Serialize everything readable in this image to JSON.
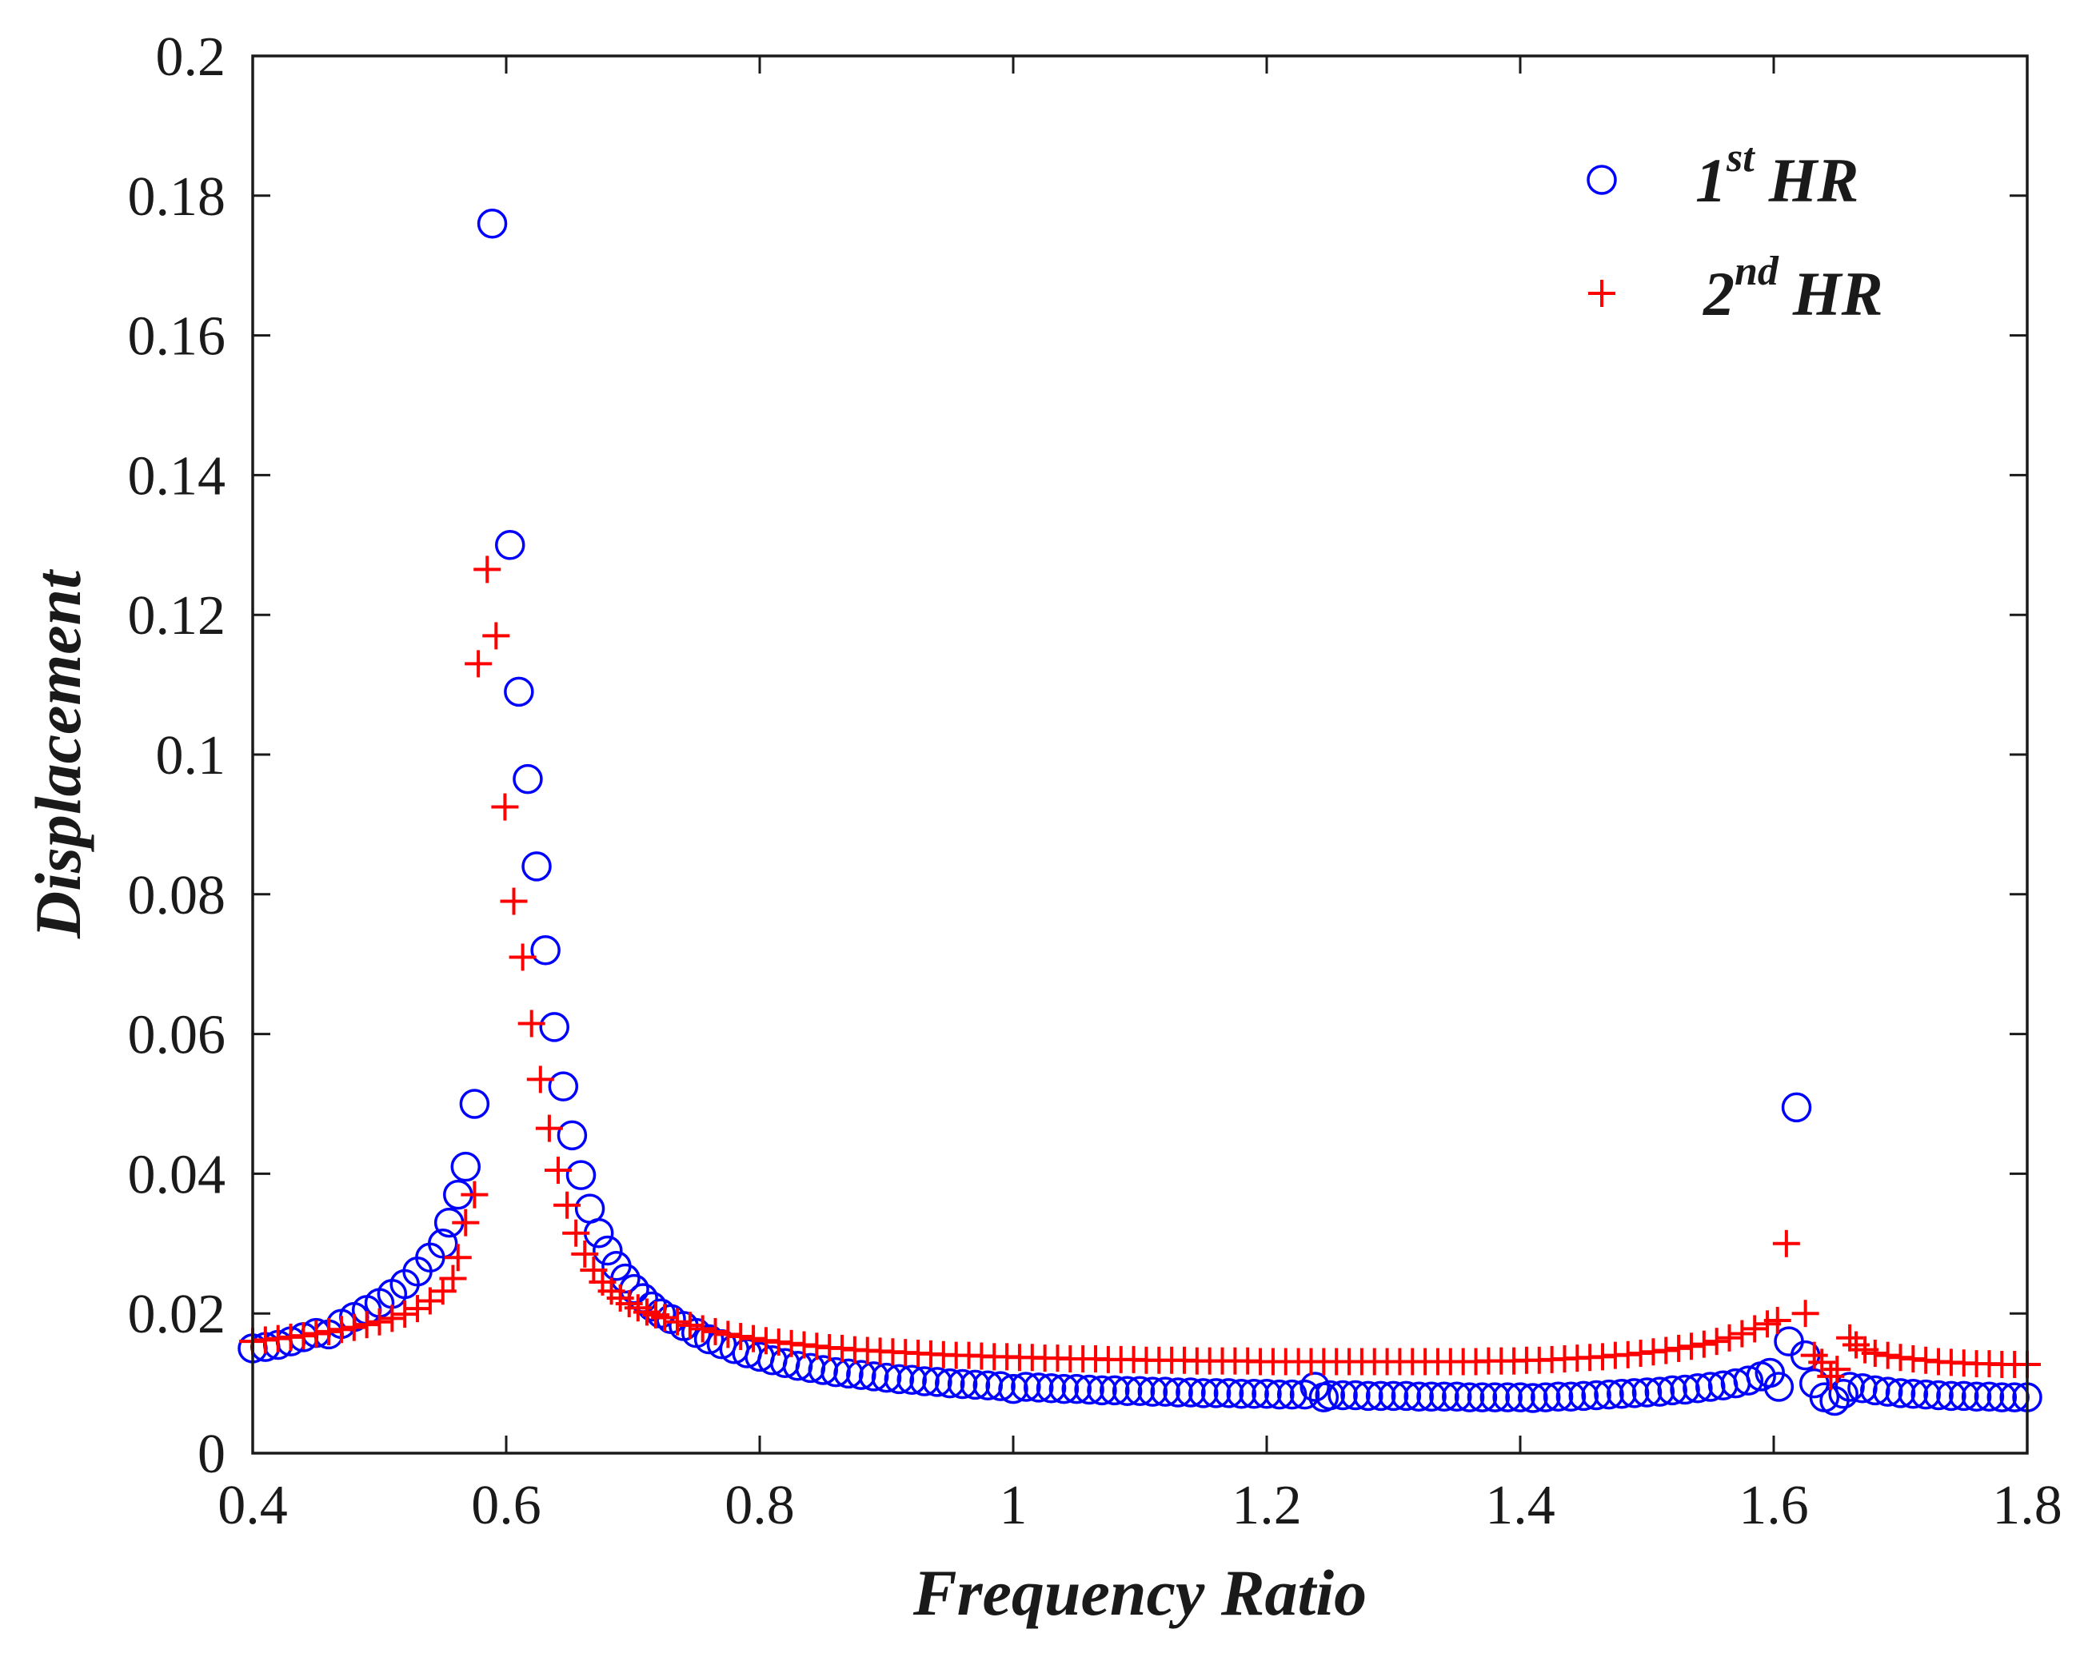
{
  "chart_data": {
    "type": "scatter",
    "title": "",
    "xlabel": "Frequency Ratio",
    "ylabel": "Displacement",
    "xlim": [
      0.4,
      1.8
    ],
    "ylim": [
      0,
      0.2
    ],
    "xticks": [
      "0.4",
      "0.6",
      "0.8",
      "1",
      "1.2",
      "1.4",
      "1.6",
      "1.8"
    ],
    "yticks": [
      "0",
      "0.02",
      "0.04",
      "0.06",
      "0.08",
      "0.1",
      "0.12",
      "0.14",
      "0.16",
      "0.18",
      "0.2"
    ],
    "grid": false,
    "legend_position": "top-right",
    "series": [
      {
        "name": "1st HR",
        "label_base": "1",
        "label_sup": "st",
        "label_rest": "HR",
        "marker": "circle",
        "color": "#0000ff",
        "points": [
          [
            0.4,
            0.015
          ],
          [
            0.41,
            0.0152
          ],
          [
            0.42,
            0.0155
          ],
          [
            0.43,
            0.016
          ],
          [
            0.44,
            0.0166
          ],
          [
            0.45,
            0.0172
          ],
          [
            0.46,
            0.017
          ],
          [
            0.47,
            0.0185
          ],
          [
            0.48,
            0.0195
          ],
          [
            0.49,
            0.0205
          ],
          [
            0.5,
            0.0215
          ],
          [
            0.51,
            0.0228
          ],
          [
            0.52,
            0.0242
          ],
          [
            0.53,
            0.026
          ],
          [
            0.54,
            0.028
          ],
          [
            0.55,
            0.03
          ],
          [
            0.555,
            0.033
          ],
          [
            0.562,
            0.037
          ],
          [
            0.568,
            0.041
          ],
          [
            0.575,
            0.05
          ],
          [
            0.589,
            0.176
          ],
          [
            0.603,
            0.13
          ],
          [
            0.61,
            0.109
          ],
          [
            0.617,
            0.0965
          ],
          [
            0.624,
            0.084
          ],
          [
            0.631,
            0.072
          ],
          [
            0.638,
            0.061
          ],
          [
            0.645,
            0.0525
          ],
          [
            0.652,
            0.0455
          ],
          [
            0.659,
            0.0398
          ],
          [
            0.666,
            0.035
          ],
          [
            0.673,
            0.0315
          ],
          [
            0.68,
            0.029
          ],
          [
            0.687,
            0.0268
          ],
          [
            0.694,
            0.025
          ],
          [
            0.701,
            0.0235
          ],
          [
            0.708,
            0.0222
          ],
          [
            0.715,
            0.021
          ],
          [
            0.722,
            0.02
          ],
          [
            0.73,
            0.0192
          ],
          [
            0.74,
            0.0182
          ],
          [
            0.75,
            0.0172
          ],
          [
            0.76,
            0.0163
          ],
          [
            0.77,
            0.0156
          ],
          [
            0.78,
            0.0149
          ],
          [
            0.79,
            0.0143
          ],
          [
            0.8,
            0.0138
          ],
          [
            0.81,
            0.0133
          ],
          [
            0.82,
            0.0129
          ],
          [
            0.83,
            0.0125
          ],
          [
            0.84,
            0.0122
          ],
          [
            0.85,
            0.0119
          ],
          [
            0.86,
            0.0116
          ],
          [
            0.87,
            0.0114
          ],
          [
            0.88,
            0.0112
          ],
          [
            0.89,
            0.011
          ],
          [
            0.9,
            0.0108
          ],
          [
            0.91,
            0.0106
          ],
          [
            0.92,
            0.0105
          ],
          [
            0.93,
            0.0103
          ],
          [
            0.94,
            0.0102
          ],
          [
            0.95,
            0.01
          ],
          [
            0.96,
            0.0099
          ],
          [
            0.97,
            0.0098
          ],
          [
            0.98,
            0.0097
          ],
          [
            0.99,
            0.0096
          ],
          [
            1.0,
            0.0092
          ],
          [
            1.01,
            0.0095
          ],
          [
            1.02,
            0.0094
          ],
          [
            1.03,
            0.0093
          ],
          [
            1.04,
            0.0092
          ],
          [
            1.05,
            0.0092
          ],
          [
            1.06,
            0.0091
          ],
          [
            1.07,
            0.009
          ],
          [
            1.08,
            0.009
          ],
          [
            1.09,
            0.0089
          ],
          [
            1.1,
            0.0089
          ],
          [
            1.11,
            0.0088
          ],
          [
            1.12,
            0.0088
          ],
          [
            1.13,
            0.0087
          ],
          [
            1.14,
            0.0087
          ],
          [
            1.15,
            0.0086
          ],
          [
            1.16,
            0.0086
          ],
          [
            1.17,
            0.0086
          ],
          [
            1.18,
            0.0085
          ],
          [
            1.19,
            0.0085
          ],
          [
            1.2,
            0.0085
          ],
          [
            1.21,
            0.0084
          ],
          [
            1.22,
            0.0084
          ],
          [
            1.23,
            0.0084
          ],
          [
            1.238,
            0.0095
          ],
          [
            1.245,
            0.008
          ],
          [
            1.25,
            0.0083
          ],
          [
            1.26,
            0.0083
          ],
          [
            1.27,
            0.0083
          ],
          [
            1.28,
            0.0082
          ],
          [
            1.29,
            0.0082
          ],
          [
            1.3,
            0.0082
          ],
          [
            1.31,
            0.0082
          ],
          [
            1.32,
            0.0081
          ],
          [
            1.33,
            0.0081
          ],
          [
            1.34,
            0.0081
          ],
          [
            1.35,
            0.0081
          ],
          [
            1.36,
            0.008
          ],
          [
            1.37,
            0.008
          ],
          [
            1.38,
            0.008
          ],
          [
            1.39,
            0.008
          ],
          [
            1.4,
            0.008
          ],
          [
            1.41,
            0.0079
          ],
          [
            1.42,
            0.008
          ],
          [
            1.43,
            0.0081
          ],
          [
            1.44,
            0.0081
          ],
          [
            1.45,
            0.0082
          ],
          [
            1.46,
            0.0083
          ],
          [
            1.47,
            0.0084
          ],
          [
            1.48,
            0.0085
          ],
          [
            1.49,
            0.0086
          ],
          [
            1.5,
            0.0087
          ],
          [
            1.51,
            0.0088
          ],
          [
            1.52,
            0.009
          ],
          [
            1.53,
            0.0091
          ],
          [
            1.54,
            0.0093
          ],
          [
            1.55,
            0.0095
          ],
          [
            1.56,
            0.0097
          ],
          [
            1.57,
            0.01
          ],
          [
            1.58,
            0.0104
          ],
          [
            1.59,
            0.011
          ],
          [
            1.597,
            0.0115
          ],
          [
            1.604,
            0.0095
          ],
          [
            1.612,
            0.016
          ],
          [
            1.618,
            0.0495
          ],
          [
            1.625,
            0.014
          ],
          [
            1.632,
            0.01
          ],
          [
            1.64,
            0.008
          ],
          [
            1.648,
            0.0075
          ],
          [
            1.655,
            0.0085
          ],
          [
            1.66,
            0.0095
          ],
          [
            1.67,
            0.0093
          ],
          [
            1.68,
            0.009
          ],
          [
            1.69,
            0.0088
          ],
          [
            1.7,
            0.0086
          ],
          [
            1.71,
            0.0085
          ],
          [
            1.72,
            0.0084
          ],
          [
            1.73,
            0.0083
          ],
          [
            1.74,
            0.0082
          ],
          [
            1.75,
            0.0082
          ],
          [
            1.76,
            0.0081
          ],
          [
            1.77,
            0.0081
          ],
          [
            1.78,
            0.008
          ],
          [
            1.79,
            0.008
          ],
          [
            1.8,
            0.008
          ]
        ]
      },
      {
        "name": "2nd HR",
        "label_base": "2",
        "label_sup": "nd",
        "label_rest": "HR",
        "marker": "plus",
        "color": "#ff0000",
        "points": [
          [
            0.4,
            0.016
          ],
          [
            0.41,
            0.0162
          ],
          [
            0.42,
            0.0164
          ],
          [
            0.43,
            0.0166
          ],
          [
            0.44,
            0.0168
          ],
          [
            0.45,
            0.0171
          ],
          [
            0.46,
            0.0174
          ],
          [
            0.47,
            0.0177
          ],
          [
            0.48,
            0.018
          ],
          [
            0.49,
            0.0184
          ],
          [
            0.5,
            0.0188
          ],
          [
            0.51,
            0.0193
          ],
          [
            0.52,
            0.0199
          ],
          [
            0.53,
            0.0207
          ],
          [
            0.54,
            0.0218
          ],
          [
            0.55,
            0.0232
          ],
          [
            0.558,
            0.025
          ],
          [
            0.562,
            0.028
          ],
          [
            0.568,
            0.033
          ],
          [
            0.575,
            0.037
          ],
          [
            0.578,
            0.113
          ],
          [
            0.585,
            0.1265
          ],
          [
            0.592,
            0.117
          ],
          [
            0.599,
            0.0925
          ],
          [
            0.606,
            0.079
          ],
          [
            0.613,
            0.071
          ],
          [
            0.62,
            0.0615
          ],
          [
            0.627,
            0.0535
          ],
          [
            0.634,
            0.0465
          ],
          [
            0.641,
            0.0405
          ],
          [
            0.648,
            0.0355
          ],
          [
            0.655,
            0.0315
          ],
          [
            0.662,
            0.0285
          ],
          [
            0.669,
            0.0262
          ],
          [
            0.676,
            0.0245
          ],
          [
            0.683,
            0.0232
          ],
          [
            0.69,
            0.0222
          ],
          [
            0.697,
            0.0214
          ],
          [
            0.704,
            0.0208
          ],
          [
            0.711,
            0.0202
          ],
          [
            0.718,
            0.0198
          ],
          [
            0.725,
            0.0194
          ],
          [
            0.735,
            0.0188
          ],
          [
            0.745,
            0.0183
          ],
          [
            0.755,
            0.0178
          ],
          [
            0.765,
            0.0174
          ],
          [
            0.775,
            0.017
          ],
          [
            0.785,
            0.0167
          ],
          [
            0.795,
            0.0164
          ],
          [
            0.805,
            0.0161
          ],
          [
            0.815,
            0.0159
          ],
          [
            0.825,
            0.0157
          ],
          [
            0.835,
            0.0155
          ],
          [
            0.845,
            0.0153
          ],
          [
            0.855,
            0.0151
          ],
          [
            0.865,
            0.015
          ],
          [
            0.875,
            0.0148
          ],
          [
            0.885,
            0.0147
          ],
          [
            0.895,
            0.0146
          ],
          [
            0.905,
            0.0145
          ],
          [
            0.915,
            0.0144
          ],
          [
            0.925,
            0.0143
          ],
          [
            0.935,
            0.0142
          ],
          [
            0.945,
            0.0141
          ],
          [
            0.955,
            0.014
          ],
          [
            0.965,
            0.014
          ],
          [
            0.975,
            0.0139
          ],
          [
            0.985,
            0.0138
          ],
          [
            0.995,
            0.0138
          ],
          [
            1.005,
            0.0137
          ],
          [
            1.015,
            0.0137
          ],
          [
            1.025,
            0.0136
          ],
          [
            1.035,
            0.0136
          ],
          [
            1.045,
            0.0135
          ],
          [
            1.055,
            0.0135
          ],
          [
            1.065,
            0.0135
          ],
          [
            1.075,
            0.0134
          ],
          [
            1.085,
            0.0134
          ],
          [
            1.095,
            0.0134
          ],
          [
            1.105,
            0.0133
          ],
          [
            1.115,
            0.0133
          ],
          [
            1.125,
            0.0133
          ],
          [
            1.135,
            0.0133
          ],
          [
            1.145,
            0.0132
          ],
          [
            1.155,
            0.0132
          ],
          [
            1.165,
            0.0132
          ],
          [
            1.175,
            0.0132
          ],
          [
            1.185,
            0.0132
          ],
          [
            1.195,
            0.0131
          ],
          [
            1.205,
            0.0131
          ],
          [
            1.215,
            0.0131
          ],
          [
            1.225,
            0.0131
          ],
          [
            1.235,
            0.0131
          ],
          [
            1.245,
            0.0131
          ],
          [
            1.255,
            0.0131
          ],
          [
            1.265,
            0.0131
          ],
          [
            1.275,
            0.0131
          ],
          [
            1.285,
            0.0131
          ],
          [
            1.295,
            0.0131
          ],
          [
            1.305,
            0.0131
          ],
          [
            1.315,
            0.0131
          ],
          [
            1.325,
            0.0131
          ],
          [
            1.335,
            0.0131
          ],
          [
            1.345,
            0.0131
          ],
          [
            1.355,
            0.0131
          ],
          [
            1.365,
            0.0131
          ],
          [
            1.375,
            0.0132
          ],
          [
            1.385,
            0.0132
          ],
          [
            1.395,
            0.0132
          ],
          [
            1.405,
            0.0133
          ],
          [
            1.415,
            0.0133
          ],
          [
            1.425,
            0.0134
          ],
          [
            1.435,
            0.0135
          ],
          [
            1.445,
            0.0136
          ],
          [
            1.455,
            0.0137
          ],
          [
            1.465,
            0.0138
          ],
          [
            1.475,
            0.014
          ],
          [
            1.485,
            0.0141
          ],
          [
            1.495,
            0.0143
          ],
          [
            1.505,
            0.0145
          ],
          [
            1.515,
            0.0147
          ],
          [
            1.525,
            0.015
          ],
          [
            1.535,
            0.0153
          ],
          [
            1.545,
            0.0156
          ],
          [
            1.555,
            0.016
          ],
          [
            1.565,
            0.0165
          ],
          [
            1.575,
            0.0171
          ],
          [
            1.585,
            0.0178
          ],
          [
            1.595,
            0.0185
          ],
          [
            1.603,
            0.019
          ],
          [
            1.61,
            0.03
          ],
          [
            1.625,
            0.02
          ],
          [
            1.632,
            0.014
          ],
          [
            1.638,
            0.013
          ],
          [
            1.645,
            0.011
          ],
          [
            1.65,
            0.012
          ],
          [
            1.66,
            0.0165
          ],
          [
            1.665,
            0.0155
          ],
          [
            1.672,
            0.0148
          ],
          [
            1.68,
            0.0143
          ],
          [
            1.69,
            0.014
          ],
          [
            1.7,
            0.0137
          ],
          [
            1.71,
            0.0135
          ],
          [
            1.72,
            0.0133
          ],
          [
            1.73,
            0.0131
          ],
          [
            1.74,
            0.013
          ],
          [
            1.75,
            0.0129
          ],
          [
            1.76,
            0.0128
          ],
          [
            1.77,
            0.0128
          ],
          [
            1.78,
            0.0127
          ],
          [
            1.79,
            0.0127
          ],
          [
            1.8,
            0.0127
          ]
        ]
      }
    ]
  }
}
